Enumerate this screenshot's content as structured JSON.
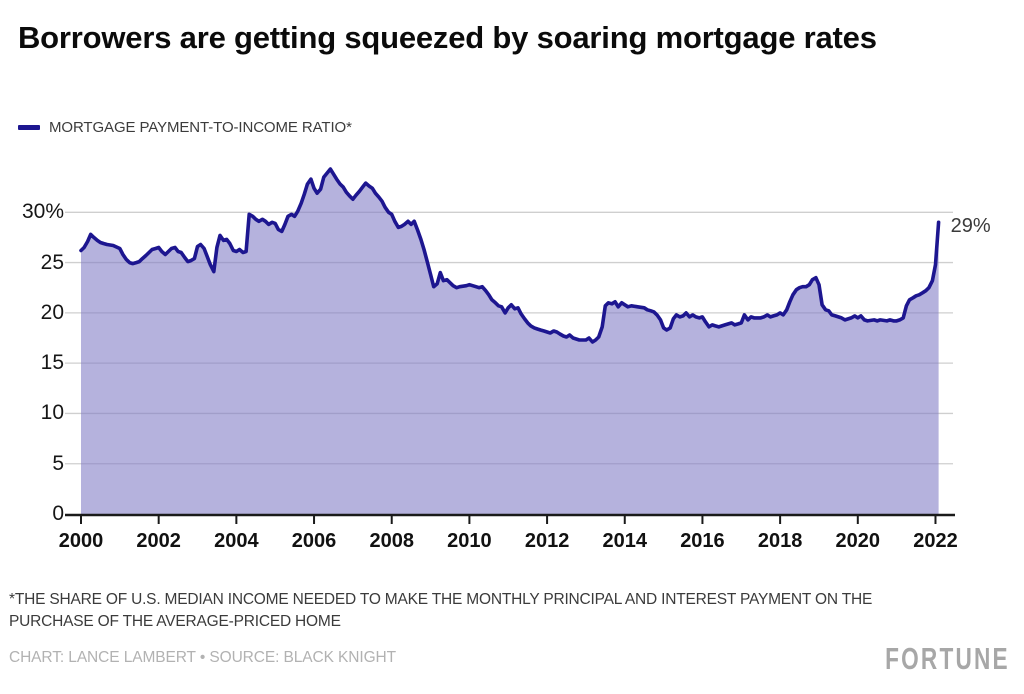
{
  "header": {
    "title": "Borrowers are getting squeezed by soaring mortgage rates"
  },
  "legend": {
    "series_label": "MORTGAGE PAYMENT-TO-INCOME RATIO*",
    "swatch_color": "#1d1690"
  },
  "footer": {
    "footnote_line1": "*THE SHARE OF U.S. MEDIAN INCOME NEEDED TO MAKE THE MONTHLY PRINCIPAL AND INTEREST PAYMENT ON THE",
    "footnote_line2": "PURCHASE OF THE AVERAGE-PRICED HOME",
    "credit": "CHART: LANCE LAMBERT • SOURCE: BLACK KNIGHT",
    "logo": "FORTUNE"
  },
  "chart_data": {
    "type": "area",
    "title": "Borrowers are getting squeezed by soaring mortgage rates",
    "xlabel": "",
    "ylabel": "",
    "xlim": [
      2000,
      2022.4
    ],
    "ylim": [
      0,
      35
    ],
    "grid": true,
    "legend_position": "top-left",
    "end_label": "29%",
    "colors": {
      "line": "#1d1690",
      "fill": "rgba(128,123,197,0.58)",
      "gridline": "#cfcfcf",
      "axis": "#1a1a1a"
    },
    "y_ticks": [
      {
        "value": 0,
        "label": "0"
      },
      {
        "value": 5,
        "label": "5"
      },
      {
        "value": 10,
        "label": "10"
      },
      {
        "value": 15,
        "label": "15"
      },
      {
        "value": 20,
        "label": "20"
      },
      {
        "value": 25,
        "label": "25"
      },
      {
        "value": 30,
        "label": "30%"
      }
    ],
    "x_ticks": [
      {
        "year": 2000,
        "label": "2000"
      },
      {
        "year": 2002,
        "label": "2002"
      },
      {
        "year": 2004,
        "label": "2004"
      },
      {
        "year": 2006,
        "label": "2006"
      },
      {
        "year": 2008,
        "label": "2008"
      },
      {
        "year": 2010,
        "label": "2010"
      },
      {
        "year": 2012,
        "label": "2012"
      },
      {
        "year": 2014,
        "label": "2014"
      },
      {
        "year": 2016,
        "label": "2016"
      },
      {
        "year": 2018,
        "label": "2018"
      },
      {
        "year": 2020,
        "label": "2020"
      },
      {
        "year": 2022,
        "label": "2022"
      }
    ],
    "series": [
      {
        "name": "MORTGAGE PAYMENT-TO-INCOME RATIO*",
        "points": [
          [
            2000.0,
            26.2
          ],
          [
            2000.08,
            26.5
          ],
          [
            2000.17,
            27.1
          ],
          [
            2000.25,
            27.8
          ],
          [
            2000.33,
            27.5
          ],
          [
            2000.42,
            27.2
          ],
          [
            2000.5,
            27.0
          ],
          [
            2000.58,
            26.9
          ],
          [
            2000.67,
            26.8
          ],
          [
            2000.83,
            26.7
          ],
          [
            2001.0,
            26.4
          ],
          [
            2001.08,
            25.8
          ],
          [
            2001.17,
            25.3
          ],
          [
            2001.25,
            25.0
          ],
          [
            2001.33,
            24.9
          ],
          [
            2001.42,
            25.0
          ],
          [
            2001.5,
            25.1
          ],
          [
            2001.58,
            25.4
          ],
          [
            2001.67,
            25.7
          ],
          [
            2001.75,
            26.0
          ],
          [
            2001.83,
            26.3
          ],
          [
            2001.92,
            26.4
          ],
          [
            2002.0,
            26.5
          ],
          [
            2002.08,
            26.1
          ],
          [
            2002.17,
            25.8
          ],
          [
            2002.25,
            26.1
          ],
          [
            2002.33,
            26.4
          ],
          [
            2002.42,
            26.5
          ],
          [
            2002.5,
            26.1
          ],
          [
            2002.58,
            26.0
          ],
          [
            2002.67,
            25.5
          ],
          [
            2002.75,
            25.1
          ],
          [
            2002.83,
            25.2
          ],
          [
            2002.92,
            25.4
          ],
          [
            2003.0,
            26.6
          ],
          [
            2003.08,
            26.8
          ],
          [
            2003.17,
            26.4
          ],
          [
            2003.25,
            25.6
          ],
          [
            2003.33,
            24.8
          ],
          [
            2003.42,
            24.1
          ],
          [
            2003.5,
            26.5
          ],
          [
            2003.58,
            27.7
          ],
          [
            2003.67,
            27.2
          ],
          [
            2003.75,
            27.3
          ],
          [
            2003.83,
            26.9
          ],
          [
            2003.92,
            26.2
          ],
          [
            2004.0,
            26.1
          ],
          [
            2004.08,
            26.3
          ],
          [
            2004.17,
            26.0
          ],
          [
            2004.25,
            26.1
          ],
          [
            2004.33,
            29.8
          ],
          [
            2004.42,
            29.6
          ],
          [
            2004.5,
            29.3
          ],
          [
            2004.58,
            29.1
          ],
          [
            2004.67,
            29.3
          ],
          [
            2004.75,
            29.1
          ],
          [
            2004.83,
            28.8
          ],
          [
            2004.92,
            29.0
          ],
          [
            2005.0,
            28.9
          ],
          [
            2005.08,
            28.3
          ],
          [
            2005.17,
            28.1
          ],
          [
            2005.25,
            28.8
          ],
          [
            2005.33,
            29.6
          ],
          [
            2005.42,
            29.8
          ],
          [
            2005.5,
            29.6
          ],
          [
            2005.58,
            30.1
          ],
          [
            2005.67,
            30.9
          ],
          [
            2005.75,
            31.8
          ],
          [
            2005.83,
            32.8
          ],
          [
            2005.92,
            33.3
          ],
          [
            2006.0,
            32.4
          ],
          [
            2006.08,
            31.9
          ],
          [
            2006.17,
            32.3
          ],
          [
            2006.25,
            33.5
          ],
          [
            2006.42,
            34.3
          ],
          [
            2006.5,
            33.8
          ],
          [
            2006.58,
            33.3
          ],
          [
            2006.67,
            32.8
          ],
          [
            2006.75,
            32.5
          ],
          [
            2006.83,
            32.0
          ],
          [
            2006.92,
            31.6
          ],
          [
            2007.0,
            31.3
          ],
          [
            2007.08,
            31.7
          ],
          [
            2007.17,
            32.1
          ],
          [
            2007.25,
            32.5
          ],
          [
            2007.33,
            32.9
          ],
          [
            2007.42,
            32.6
          ],
          [
            2007.5,
            32.4
          ],
          [
            2007.58,
            31.9
          ],
          [
            2007.67,
            31.5
          ],
          [
            2007.75,
            31.1
          ],
          [
            2007.83,
            30.5
          ],
          [
            2007.92,
            30.0
          ],
          [
            2008.0,
            29.8
          ],
          [
            2008.08,
            29.1
          ],
          [
            2008.17,
            28.5
          ],
          [
            2008.25,
            28.6
          ],
          [
            2008.33,
            28.8
          ],
          [
            2008.42,
            29.1
          ],
          [
            2008.5,
            28.8
          ],
          [
            2008.58,
            29.1
          ],
          [
            2008.67,
            28.2
          ],
          [
            2008.75,
            27.3
          ],
          [
            2008.83,
            26.3
          ],
          [
            2008.92,
            25.0
          ],
          [
            2009.0,
            23.8
          ],
          [
            2009.08,
            22.6
          ],
          [
            2009.17,
            22.9
          ],
          [
            2009.25,
            24.0
          ],
          [
            2009.33,
            23.2
          ],
          [
            2009.42,
            23.3
          ],
          [
            2009.5,
            23.0
          ],
          [
            2009.58,
            22.7
          ],
          [
            2009.67,
            22.5
          ],
          [
            2009.75,
            22.6
          ],
          [
            2009.92,
            22.7
          ],
          [
            2010.0,
            22.8
          ],
          [
            2010.17,
            22.6
          ],
          [
            2010.25,
            22.5
          ],
          [
            2010.33,
            22.6
          ],
          [
            2010.42,
            22.2
          ],
          [
            2010.5,
            21.8
          ],
          [
            2010.58,
            21.3
          ],
          [
            2010.67,
            21.0
          ],
          [
            2010.75,
            20.7
          ],
          [
            2010.83,
            20.6
          ],
          [
            2010.92,
            20.0
          ],
          [
            2011.0,
            20.5
          ],
          [
            2011.08,
            20.8
          ],
          [
            2011.17,
            20.4
          ],
          [
            2011.25,
            20.5
          ],
          [
            2011.33,
            19.9
          ],
          [
            2011.42,
            19.4
          ],
          [
            2011.5,
            19.0
          ],
          [
            2011.58,
            18.7
          ],
          [
            2011.67,
            18.5
          ],
          [
            2011.75,
            18.4
          ],
          [
            2011.83,
            18.3
          ],
          [
            2011.92,
            18.2
          ],
          [
            2012.0,
            18.1
          ],
          [
            2012.08,
            18.0
          ],
          [
            2012.17,
            18.2
          ],
          [
            2012.25,
            18.1
          ],
          [
            2012.33,
            17.9
          ],
          [
            2012.42,
            17.7
          ],
          [
            2012.5,
            17.6
          ],
          [
            2012.58,
            17.8
          ],
          [
            2012.67,
            17.5
          ],
          [
            2012.75,
            17.4
          ],
          [
            2012.83,
            17.3
          ],
          [
            2013.0,
            17.3
          ],
          [
            2013.08,
            17.5
          ],
          [
            2013.17,
            17.1
          ],
          [
            2013.25,
            17.3
          ],
          [
            2013.33,
            17.6
          ],
          [
            2013.42,
            18.6
          ],
          [
            2013.5,
            20.7
          ],
          [
            2013.58,
            21.0
          ],
          [
            2013.67,
            20.9
          ],
          [
            2013.75,
            21.1
          ],
          [
            2013.83,
            20.6
          ],
          [
            2013.92,
            21.0
          ],
          [
            2014.0,
            20.8
          ],
          [
            2014.08,
            20.6
          ],
          [
            2014.17,
            20.7
          ],
          [
            2014.33,
            20.6
          ],
          [
            2014.5,
            20.5
          ],
          [
            2014.58,
            20.3
          ],
          [
            2014.67,
            20.2
          ],
          [
            2014.75,
            20.1
          ],
          [
            2014.83,
            19.8
          ],
          [
            2014.92,
            19.3
          ],
          [
            2015.0,
            18.5
          ],
          [
            2015.08,
            18.3
          ],
          [
            2015.17,
            18.5
          ],
          [
            2015.25,
            19.4
          ],
          [
            2015.33,
            19.8
          ],
          [
            2015.42,
            19.6
          ],
          [
            2015.5,
            19.7
          ],
          [
            2015.58,
            20.0
          ],
          [
            2015.67,
            19.6
          ],
          [
            2015.75,
            19.8
          ],
          [
            2015.83,
            19.6
          ],
          [
            2015.92,
            19.5
          ],
          [
            2016.0,
            19.6
          ],
          [
            2016.08,
            19.1
          ],
          [
            2016.17,
            18.6
          ],
          [
            2016.25,
            18.8
          ],
          [
            2016.33,
            18.7
          ],
          [
            2016.42,
            18.6
          ],
          [
            2016.5,
            18.7
          ],
          [
            2016.58,
            18.8
          ],
          [
            2016.75,
            19.0
          ],
          [
            2016.83,
            18.8
          ],
          [
            2016.92,
            18.9
          ],
          [
            2017.0,
            19.0
          ],
          [
            2017.08,
            19.8
          ],
          [
            2017.17,
            19.3
          ],
          [
            2017.25,
            19.6
          ],
          [
            2017.33,
            19.5
          ],
          [
            2017.5,
            19.5
          ],
          [
            2017.58,
            19.6
          ],
          [
            2017.67,
            19.8
          ],
          [
            2017.75,
            19.6
          ],
          [
            2017.83,
            19.7
          ],
          [
            2017.92,
            19.8
          ],
          [
            2018.0,
            20.0
          ],
          [
            2018.08,
            19.8
          ],
          [
            2018.17,
            20.3
          ],
          [
            2018.25,
            21.1
          ],
          [
            2018.33,
            21.8
          ],
          [
            2018.42,
            22.3
          ],
          [
            2018.5,
            22.5
          ],
          [
            2018.58,
            22.6
          ],
          [
            2018.67,
            22.6
          ],
          [
            2018.75,
            22.8
          ],
          [
            2018.83,
            23.3
          ],
          [
            2018.92,
            23.5
          ],
          [
            2019.0,
            22.8
          ],
          [
            2019.08,
            20.8
          ],
          [
            2019.17,
            20.3
          ],
          [
            2019.25,
            20.2
          ],
          [
            2019.33,
            19.8
          ],
          [
            2019.42,
            19.7
          ],
          [
            2019.5,
            19.6
          ],
          [
            2019.58,
            19.5
          ],
          [
            2019.67,
            19.3
          ],
          [
            2019.75,
            19.4
          ],
          [
            2019.83,
            19.5
          ],
          [
            2019.92,
            19.7
          ],
          [
            2020.0,
            19.5
          ],
          [
            2020.08,
            19.7
          ],
          [
            2020.17,
            19.3
          ],
          [
            2020.25,
            19.2
          ],
          [
            2020.42,
            19.3
          ],
          [
            2020.5,
            19.2
          ],
          [
            2020.58,
            19.3
          ],
          [
            2020.75,
            19.2
          ],
          [
            2020.83,
            19.3
          ],
          [
            2020.92,
            19.2
          ],
          [
            2021.0,
            19.2
          ],
          [
            2021.08,
            19.3
          ],
          [
            2021.17,
            19.5
          ],
          [
            2021.25,
            20.7
          ],
          [
            2021.33,
            21.3
          ],
          [
            2021.42,
            21.5
          ],
          [
            2021.5,
            21.7
          ],
          [
            2021.58,
            21.8
          ],
          [
            2021.67,
            22.0
          ],
          [
            2021.75,
            22.2
          ],
          [
            2021.83,
            22.5
          ],
          [
            2021.92,
            23.2
          ],
          [
            2022.0,
            24.8
          ],
          [
            2022.08,
            29.0
          ]
        ]
      }
    ]
  }
}
